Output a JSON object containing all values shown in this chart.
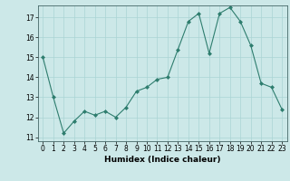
{
  "x": [
    0,
    1,
    2,
    3,
    4,
    5,
    6,
    7,
    8,
    9,
    10,
    11,
    12,
    13,
    14,
    15,
    16,
    17,
    18,
    19,
    20,
    21,
    22,
    23
  ],
  "y": [
    15.0,
    13.0,
    11.2,
    11.8,
    12.3,
    12.1,
    12.3,
    12.0,
    12.5,
    13.3,
    13.5,
    13.9,
    14.0,
    15.4,
    16.8,
    17.2,
    15.2,
    17.2,
    17.5,
    16.8,
    15.6,
    13.7,
    13.5,
    12.4
  ],
  "line_color": "#2e7d6e",
  "marker": "D",
  "marker_size": 2,
  "bg_color": "#cce8e8",
  "grid_color": "#aad4d4",
  "xlabel": "Humidex (Indice chaleur)",
  "ylim": [
    10.8,
    17.6
  ],
  "yticks": [
    11,
    12,
    13,
    14,
    15,
    16,
    17
  ],
  "xlim": [
    -0.5,
    23.5
  ],
  "xticks": [
    0,
    1,
    2,
    3,
    4,
    5,
    6,
    7,
    8,
    9,
    10,
    11,
    12,
    13,
    14,
    15,
    16,
    17,
    18,
    19,
    20,
    21,
    22,
    23
  ],
  "label_fontsize": 6.5,
  "tick_fontsize": 5.5
}
